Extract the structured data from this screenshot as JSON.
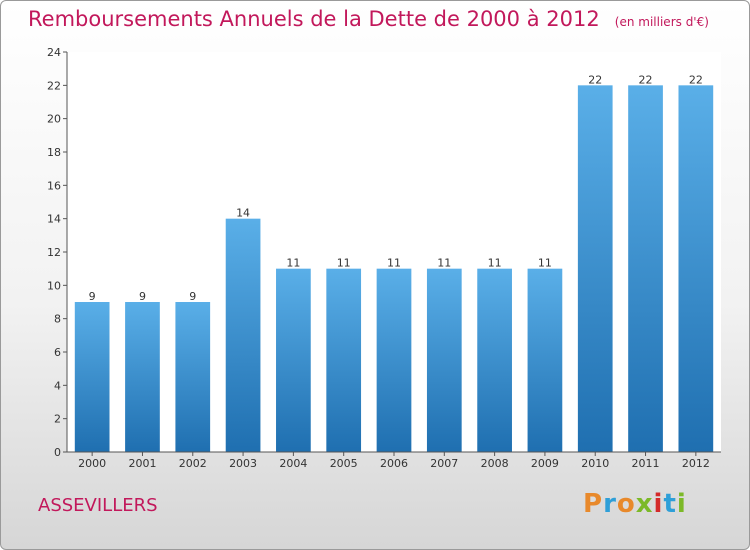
{
  "title": "Remboursements Annuels de la Dette de 2000 à 2012",
  "unit": "(en milliers d'€)",
  "commune": "ASSEVILLERS",
  "logo": {
    "text": "Proxiti",
    "colors": [
      "#e8892b",
      "#2e9fd8",
      "#e8892b",
      "#7cb928",
      "#d42a2a",
      "#2e9fd8",
      "#7cb928"
    ]
  },
  "colors": {
    "bar_top": "#5aafe8",
    "bar_bottom": "#1f6fb0",
    "title": "#c2185b"
  },
  "chart_data": {
    "type": "bar",
    "categories": [
      "2000",
      "2001",
      "2002",
      "2003",
      "2004",
      "2005",
      "2006",
      "2007",
      "2008",
      "2009",
      "2010",
      "2011",
      "2012"
    ],
    "values": [
      9,
      9,
      9,
      14,
      11,
      11,
      11,
      11,
      11,
      11,
      22,
      22,
      22
    ],
    "data_labels": [
      "9",
      "9",
      "9",
      "14",
      "11",
      "11",
      "11",
      "11",
      "11",
      "11",
      "22",
      "22",
      "22"
    ],
    "ylim": [
      0,
      24
    ],
    "yticks": [
      0,
      2,
      4,
      6,
      8,
      10,
      12,
      14,
      16,
      18,
      20,
      22,
      24
    ],
    "grid": false,
    "xlabel": "",
    "ylabel": ""
  }
}
